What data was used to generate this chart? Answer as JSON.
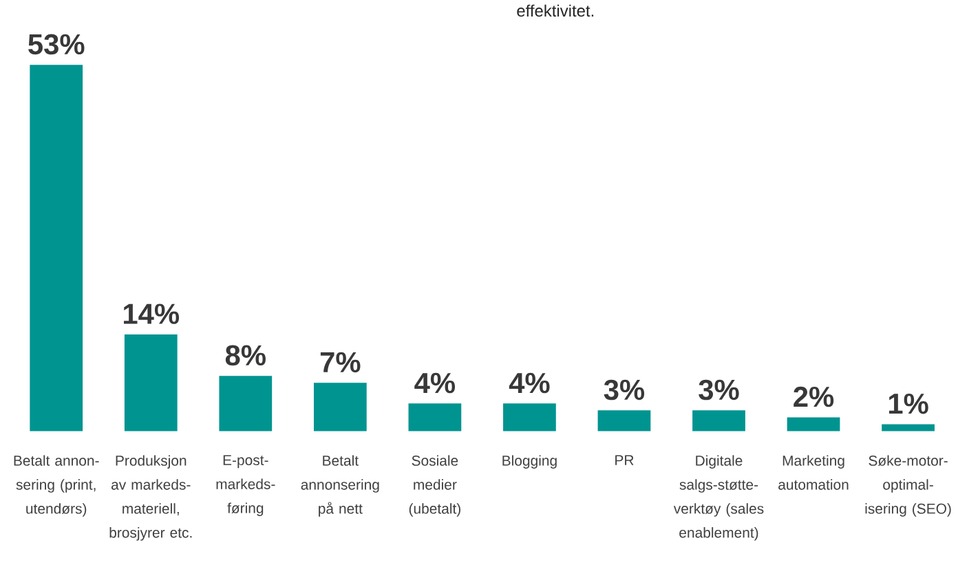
{
  "chart_data": {
    "type": "bar",
    "title": "effektivitet.",
    "categories": [
      "Betalt annon-sering (print, utendørs)",
      "Produksjon av markeds-materiell, brosjyrer etc.",
      "E-post-markeds-føring",
      "Betalt annonsering på nett",
      "Sosiale medier (ubetalt)",
      "Blogging",
      "PR",
      "Digitale salgs-støtte-verktøy (sales enablement)",
      "Marketing automation",
      "Søke-motor-optimal-isering (SEO)"
    ],
    "values": [
      53,
      14,
      8,
      7,
      4,
      4,
      3,
      3,
      2,
      1
    ],
    "value_labels": [
      "53%",
      "14%",
      "8%",
      "7%",
      "4%",
      "4%",
      "3%",
      "3%",
      "2%",
      "1%"
    ],
    "color": "#009490",
    "ylim": [
      0,
      53
    ]
  }
}
